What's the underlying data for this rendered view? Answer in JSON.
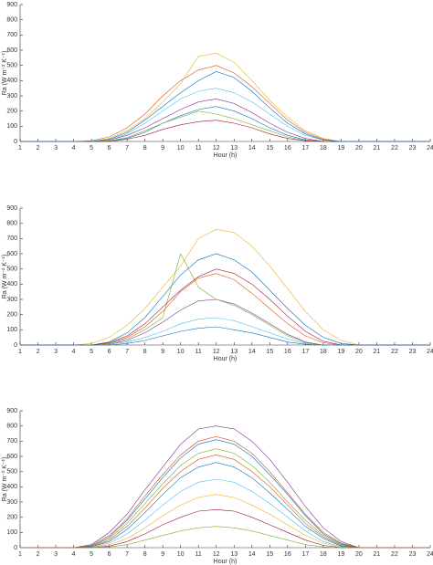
{
  "chart_data": [
    {
      "type": "line",
      "xlabel": "Hour (h)",
      "ylabel": "Ra (W m⁻² K⁻¹)",
      "x": [
        1,
        2,
        3,
        4,
        5,
        6,
        7,
        8,
        9,
        10,
        11,
        12,
        13,
        14,
        15,
        16,
        17,
        18,
        19,
        20,
        21,
        22,
        23,
        24
      ],
      "xlim": [
        1,
        24
      ],
      "ylim": [
        0,
        900
      ],
      "xticks": [
        1,
        2,
        3,
        4,
        5,
        6,
        7,
        8,
        9,
        10,
        11,
        12,
        13,
        14,
        15,
        16,
        17,
        18,
        19,
        20,
        21,
        22,
        23,
        24
      ],
      "yticks": [
        0,
        100,
        200,
        300,
        400,
        500,
        600,
        700,
        800,
        900
      ],
      "series": [
        {
          "color": "#0072BD",
          "values": [
            0,
            0,
            0,
            0,
            0,
            5,
            20,
            60,
            120,
            170,
            210,
            230,
            200,
            150,
            90,
            40,
            10,
            0,
            0,
            0,
            0,
            0,
            0,
            0
          ]
        },
        {
          "color": "#D95319",
          "values": [
            0,
            0,
            0,
            0,
            5,
            30,
            90,
            180,
            300,
            400,
            470,
            500,
            450,
            360,
            250,
            140,
            60,
            15,
            0,
            0,
            0,
            0,
            0,
            0
          ]
        },
        {
          "color": "#EDB120",
          "values": [
            0,
            0,
            0,
            0,
            0,
            20,
            70,
            150,
            260,
            380,
            560,
            580,
            520,
            400,
            270,
            160,
            70,
            20,
            0,
            0,
            0,
            0,
            0,
            0
          ]
        },
        {
          "color": "#7E2F8E",
          "values": [
            0,
            0,
            0,
            0,
            0,
            10,
            40,
            90,
            150,
            210,
            260,
            280,
            250,
            190,
            120,
            60,
            20,
            0,
            0,
            0,
            0,
            0,
            0,
            0
          ]
        },
        {
          "color": "#77AC30",
          "values": [
            0,
            0,
            0,
            0,
            0,
            5,
            25,
            70,
            120,
            160,
            200,
            180,
            150,
            110,
            70,
            30,
            5,
            0,
            0,
            0,
            0,
            0,
            0,
            0
          ]
        },
        {
          "color": "#4DBEEE",
          "values": [
            0,
            0,
            0,
            0,
            0,
            10,
            50,
            120,
            200,
            280,
            330,
            350,
            320,
            260,
            180,
            100,
            40,
            10,
            0,
            0,
            0,
            0,
            0,
            0
          ]
        },
        {
          "color": "#A2142F",
          "values": [
            0,
            0,
            0,
            0,
            0,
            0,
            15,
            40,
            80,
            110,
            130,
            140,
            120,
            90,
            50,
            20,
            5,
            0,
            0,
            0,
            0,
            0,
            0,
            0
          ]
        },
        {
          "color": "#0072BD",
          "values": [
            0,
            0,
            0,
            0,
            0,
            15,
            60,
            140,
            230,
            320,
            400,
            460,
            420,
            330,
            220,
            120,
            50,
            10,
            0,
            0,
            0,
            0,
            0,
            0
          ]
        }
      ]
    },
    {
      "type": "line",
      "xlabel": "Hour (h)",
      "ylabel": "Ra (W m⁻² K⁻¹)",
      "x": [
        1,
        2,
        3,
        4,
        5,
        6,
        7,
        8,
        9,
        10,
        11,
        12,
        13,
        14,
        15,
        16,
        17,
        18,
        19,
        20,
        21,
        22,
        23,
        24
      ],
      "xlim": [
        1,
        24
      ],
      "ylim": [
        0,
        900
      ],
      "xticks": [
        1,
        2,
        3,
        4,
        5,
        6,
        7,
        8,
        9,
        10,
        11,
        12,
        13,
        14,
        15,
        16,
        17,
        18,
        19,
        20,
        21,
        22,
        23,
        24
      ],
      "yticks": [
        0,
        100,
        200,
        300,
        400,
        500,
        600,
        700,
        800,
        900
      ],
      "series": [
        {
          "color": "#EDB120",
          "values": [
            0,
            0,
            0,
            0,
            10,
            50,
            130,
            240,
            380,
            520,
            700,
            760,
            740,
            650,
            520,
            370,
            220,
            100,
            30,
            0,
            0,
            0,
            0,
            0
          ]
        },
        {
          "color": "#0072BD",
          "values": [
            0,
            0,
            0,
            0,
            0,
            20,
            80,
            180,
            320,
            460,
            560,
            600,
            560,
            480,
            360,
            240,
            130,
            50,
            10,
            0,
            0,
            0,
            0,
            0
          ]
        },
        {
          "color": "#D95319",
          "values": [
            0,
            0,
            0,
            0,
            0,
            10,
            50,
            120,
            220,
            350,
            440,
            470,
            430,
            340,
            240,
            140,
            60,
            15,
            0,
            0,
            0,
            0,
            0,
            0
          ]
        },
        {
          "color": "#7E2F8E",
          "values": [
            0,
            0,
            0,
            0,
            0,
            5,
            30,
            80,
            150,
            230,
            290,
            300,
            270,
            210,
            140,
            70,
            20,
            0,
            0,
            0,
            0,
            0,
            0,
            0
          ]
        },
        {
          "color": "#77AC30",
          "values": [
            0,
            0,
            0,
            0,
            0,
            10,
            40,
            100,
            180,
            600,
            380,
            300,
            260,
            200,
            130,
            60,
            15,
            0,
            0,
            0,
            0,
            0,
            0,
            0
          ]
        },
        {
          "color": "#4DBEEE",
          "values": [
            0,
            0,
            0,
            0,
            0,
            5,
            20,
            50,
            90,
            140,
            170,
            180,
            160,
            120,
            80,
            40,
            10,
            0,
            0,
            0,
            0,
            0,
            0,
            0
          ]
        },
        {
          "color": "#A2142F",
          "values": [
            0,
            0,
            0,
            0,
            0,
            15,
            60,
            140,
            250,
            360,
            450,
            500,
            470,
            400,
            300,
            190,
            90,
            25,
            0,
            0,
            0,
            0,
            0,
            0
          ]
        },
        {
          "color": "#0072BD",
          "values": [
            0,
            0,
            0,
            0,
            0,
            0,
            10,
            30,
            60,
            90,
            110,
            120,
            100,
            80,
            50,
            20,
            5,
            0,
            0,
            0,
            0,
            0,
            0,
            0
          ]
        }
      ]
    },
    {
      "type": "line",
      "xlabel": "Hour (h)",
      "ylabel": "Ra (W m⁻² K⁻¹)",
      "x": [
        1,
        2,
        3,
        4,
        5,
        6,
        7,
        8,
        9,
        10,
        11,
        12,
        13,
        14,
        15,
        16,
        17,
        18,
        19,
        20,
        21,
        22,
        23,
        24
      ],
      "xlim": [
        1,
        24
      ],
      "ylim": [
        0,
        900
      ],
      "xticks": [
        1,
        2,
        3,
        4,
        5,
        6,
        7,
        8,
        9,
        10,
        11,
        12,
        13,
        14,
        15,
        16,
        17,
        18,
        19,
        20,
        21,
        22,
        23,
        24
      ],
      "yticks": [
        0,
        100,
        200,
        300,
        400,
        500,
        600,
        700,
        800,
        900
      ],
      "series": [
        {
          "color": "#7E2F8E",
          "values": [
            0,
            0,
            0,
            0,
            20,
            100,
            220,
            380,
            530,
            680,
            780,
            800,
            780,
            700,
            580,
            430,
            270,
            130,
            40,
            0,
            0,
            0,
            0,
            0
          ]
        },
        {
          "color": "#D95319",
          "values": [
            0,
            0,
            0,
            0,
            15,
            80,
            190,
            340,
            480,
            610,
            700,
            730,
            700,
            620,
            500,
            360,
            220,
            100,
            30,
            0,
            0,
            0,
            0,
            0
          ]
        },
        {
          "color": "#77AC30",
          "values": [
            0,
            0,
            0,
            0,
            10,
            60,
            160,
            290,
            420,
            540,
            620,
            650,
            620,
            540,
            430,
            300,
            180,
            80,
            20,
            0,
            0,
            0,
            0,
            0
          ]
        },
        {
          "color": "#0072BD",
          "values": [
            0,
            0,
            0,
            0,
            5,
            40,
            120,
            230,
            350,
            460,
            530,
            560,
            530,
            460,
            360,
            250,
            140,
            60,
            10,
            0,
            0,
            0,
            0,
            0
          ]
        },
        {
          "color": "#4DBEEE",
          "values": [
            0,
            0,
            0,
            0,
            0,
            30,
            90,
            180,
            280,
            370,
            430,
            450,
            430,
            370,
            290,
            200,
            110,
            40,
            5,
            0,
            0,
            0,
            0,
            0
          ]
        },
        {
          "color": "#EDB120",
          "values": [
            0,
            0,
            0,
            0,
            0,
            20,
            60,
            130,
            210,
            280,
            330,
            350,
            330,
            280,
            220,
            150,
            80,
            30,
            0,
            0,
            0,
            0,
            0,
            0
          ]
        },
        {
          "color": "#A2142F",
          "values": [
            0,
            0,
            0,
            0,
            0,
            10,
            40,
            90,
            150,
            200,
            240,
            250,
            240,
            200,
            150,
            100,
            50,
            15,
            0,
            0,
            0,
            0,
            0,
            0
          ]
        },
        {
          "color": "#77AC30",
          "values": [
            0,
            0,
            0,
            0,
            0,
            5,
            20,
            50,
            80,
            110,
            130,
            140,
            130,
            110,
            80,
            50,
            20,
            5,
            0,
            0,
            0,
            0,
            0,
            0
          ]
        },
        {
          "color": "#0072BD",
          "values": [
            0,
            0,
            0,
            0,
            10,
            70,
            180,
            320,
            460,
            590,
            680,
            710,
            680,
            600,
            480,
            350,
            210,
            90,
            25,
            0,
            0,
            0,
            0,
            0
          ]
        },
        {
          "color": "#D95319",
          "values": [
            0,
            0,
            0,
            0,
            5,
            50,
            140,
            260,
            390,
            500,
            580,
            610,
            580,
            500,
            400,
            280,
            160,
            70,
            15,
            0,
            0,
            0,
            0,
            0
          ]
        }
      ]
    }
  ]
}
